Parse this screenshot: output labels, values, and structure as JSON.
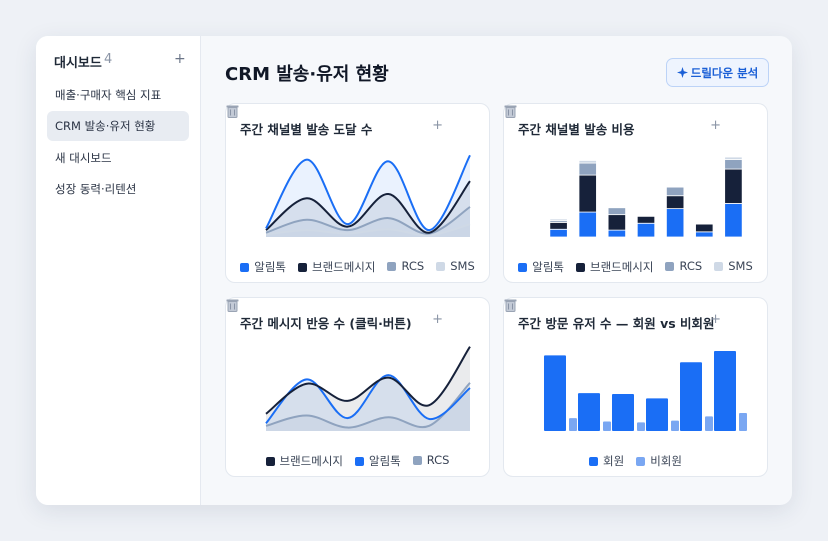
{
  "sidebar": {
    "title": "대시보드",
    "count": "4",
    "add": "+",
    "items": [
      "매출·구매자 핵심 지표",
      "CRM 발송·유저 현황",
      "새 대시보드",
      "성장 동력·리텐션"
    ],
    "active": 1
  },
  "header": {
    "title": "CRM 발송·유저 현황",
    "button": "드릴다운 분석"
  },
  "card_add": "+",
  "chart_data": [
    {
      "type": "line",
      "title": "주간 채널별 발송 도달 수",
      "area": true,
      "categories": [
        null,
        null,
        null,
        null,
        null,
        null
      ],
      "ylim": [
        0,
        100
      ],
      "series": [
        {
          "name": "알림톡",
          "color": "#1a6ef5",
          "values": [
            10,
            90,
            15,
            88,
            8,
            95
          ]
        },
        {
          "name": "브랜드메시지",
          "color": "#16213a",
          "values": [
            8,
            45,
            12,
            50,
            5,
            65
          ]
        },
        {
          "name": "RCS",
          "color": "#8fa3bf",
          "values": [
            5,
            20,
            8,
            22,
            4,
            35
          ]
        },
        {
          "name": "SMS",
          "color": "#cfd9e6",
          "values": [
            3,
            8,
            4,
            9,
            2,
            15
          ]
        }
      ]
    },
    {
      "type": "stacked-bar",
      "title": "주간 채널별 발송 비용",
      "categories": [
        null,
        null,
        null,
        null,
        null,
        null,
        null
      ],
      "ylim": [
        0,
        100
      ],
      "series": [
        {
          "name": "알림톡",
          "color": "#1a6ef5",
          "values": [
            9,
            29,
            8,
            16,
            33,
            6,
            39
          ]
        },
        {
          "name": "브랜드메시지",
          "color": "#16213a",
          "values": [
            8,
            43,
            18,
            8,
            15,
            9,
            40
          ]
        },
        {
          "name": "RCS",
          "color": "#8fa3bf",
          "values": [
            2,
            14,
            8,
            0,
            10,
            0,
            11
          ]
        },
        {
          "name": "SMS",
          "color": "#cfd9e6",
          "values": [
            2,
            3,
            0,
            0,
            0,
            0,
            3
          ]
        }
      ]
    },
    {
      "type": "line",
      "title": "주간 메시지 반응 수 (클릭·버튼)",
      "area": true,
      "categories": [
        null,
        null,
        null,
        null,
        null,
        null
      ],
      "ylim": [
        0,
        100
      ],
      "series": [
        {
          "name": "브랜드메시지",
          "color": "#16213a",
          "values": [
            20,
            55,
            35,
            62,
            30,
            98
          ]
        },
        {
          "name": "알림톡",
          "color": "#1a6ef5",
          "values": [
            9,
            60,
            15,
            65,
            14,
            50
          ]
        },
        {
          "name": "RCS",
          "color": "#8fa3bf",
          "values": [
            6,
            18,
            4,
            16,
            6,
            56
          ]
        }
      ]
    },
    {
      "type": "grouped-bar",
      "title": "주간 방문 유저 수 — 회원 vs 비회원",
      "categories": [
        null,
        null,
        null,
        null,
        null,
        null
      ],
      "ylim": [
        0,
        100
      ],
      "series": [
        {
          "name": "회원",
          "color": "#1a6ef5",
          "values": [
            88,
            44,
            43,
            38,
            80,
            93
          ]
        },
        {
          "name": "비회원",
          "color": "#7aa7f2",
          "values": [
            15,
            11,
            10,
            12,
            17,
            21
          ]
        }
      ]
    }
  ]
}
